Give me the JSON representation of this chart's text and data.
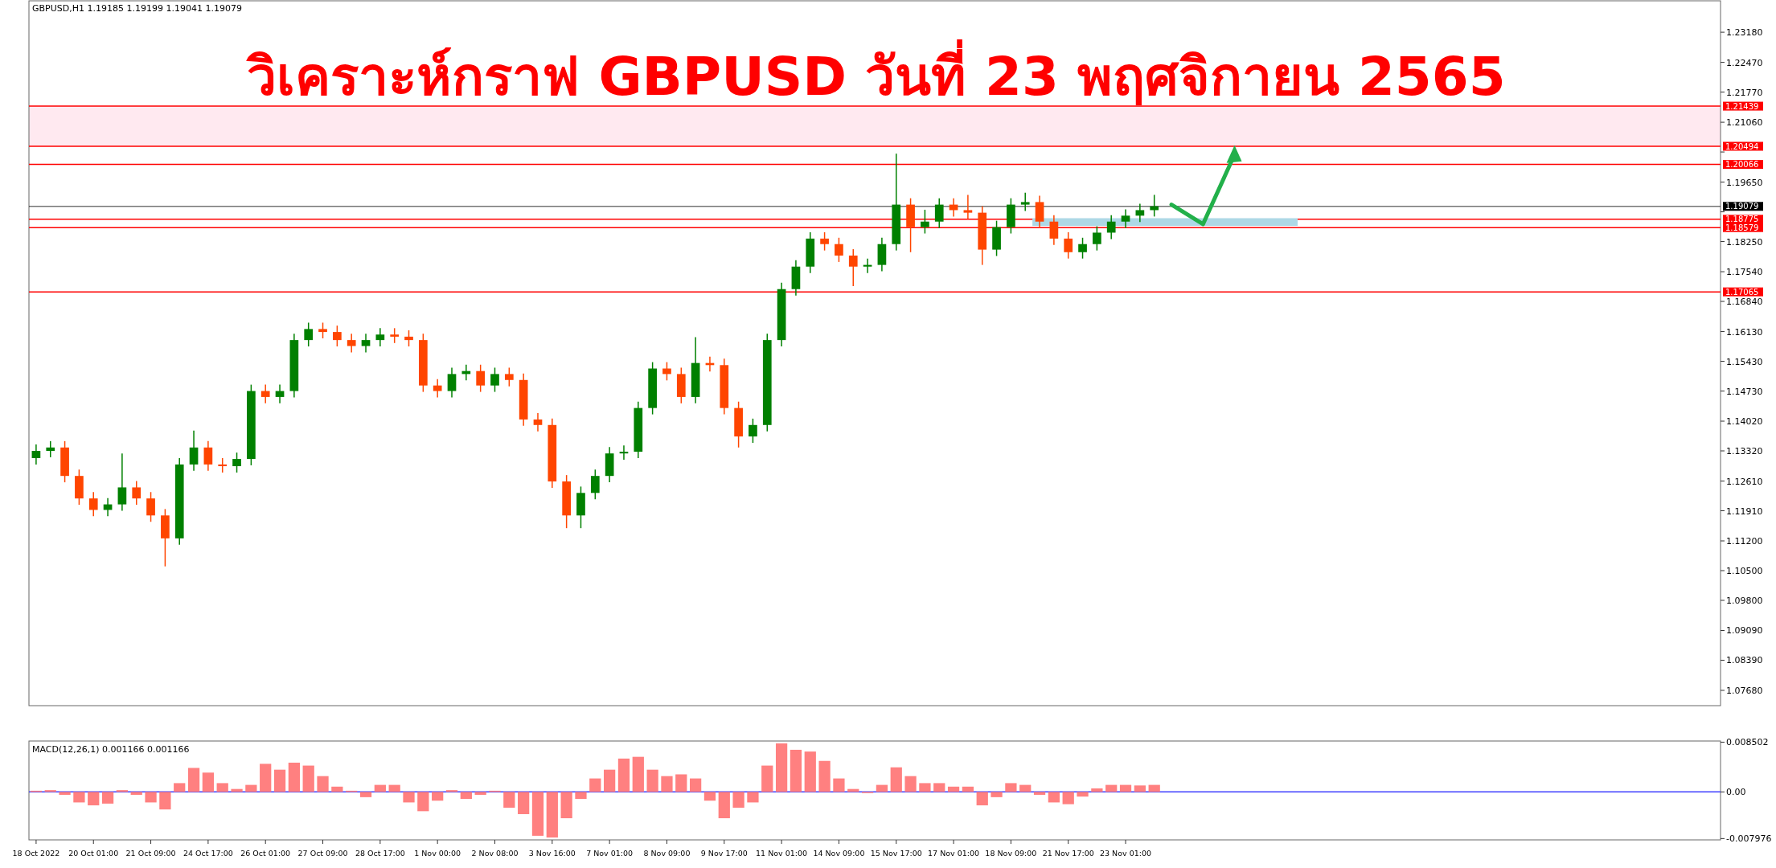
{
  "chart_data": [
    {
      "type": "candlestick",
      "title": "วิเคราะห์กราฟ GBPUSD วันที่ 23 พฤศจิกายน 2565",
      "annotations": [
        "GBPUSD,H1  1.19185 1.19199 1.19041 1.19079"
      ],
      "categories": [
        null,
        null,
        null,
        null,
        null,
        null,
        null,
        null,
        null,
        null,
        null,
        null,
        null,
        null,
        null,
        null,
        null,
        null,
        null,
        null,
        null,
        null,
        null,
        null,
        null,
        null,
        null,
        null,
        null,
        null,
        null,
        null,
        null,
        null,
        null,
        null,
        null,
        null,
        null,
        null,
        null,
        null,
        null,
        null,
        null,
        null,
        null,
        null,
        null,
        null,
        null,
        null,
        null,
        null,
        null,
        null,
        null,
        null,
        null,
        null,
        null,
        null,
        null,
        null,
        null,
        null,
        null,
        null,
        null,
        null,
        null,
        null,
        null,
        null,
        null,
        null,
        null,
        null,
        null,
        null,
        null,
        null,
        null,
        null,
        null,
        null,
        null,
        null,
        null,
        null,
        null,
        null,
        null,
        null,
        null,
        null,
        null,
        null,
        null,
        null,
        null,
        null,
        null,
        null,
        null,
        null,
        null,
        null,
        null,
        null,
        null,
        null,
        null,
        null,
        null,
        null,
        null,
        null
      ],
      "ohlc": [
        [
          1.1315,
          1.1347,
          1.13,
          1.1332
        ],
        [
          1.1332,
          1.1355,
          1.1317,
          1.134
        ],
        [
          1.134,
          1.1355,
          1.1258,
          1.1273
        ],
        [
          1.1273,
          1.1288,
          1.1205,
          1.122
        ],
        [
          1.122,
          1.1235,
          1.1178,
          1.1193
        ],
        [
          1.1193,
          1.1221,
          1.1178,
          1.1206
        ],
        [
          1.1206,
          1.1326,
          1.1191,
          1.1246
        ],
        [
          1.1246,
          1.1261,
          1.1205,
          1.122
        ],
        [
          1.122,
          1.1235,
          1.1165,
          1.118
        ],
        [
          1.118,
          1.1195,
          1.106,
          1.1126
        ],
        [
          1.1126,
          1.1315,
          1.1111,
          1.13
        ],
        [
          1.13,
          1.138,
          1.1285,
          1.134
        ],
        [
          1.134,
          1.1355,
          1.1285,
          1.13
        ],
        [
          1.13,
          1.1315,
          1.1281,
          1.1296
        ],
        [
          1.1296,
          1.1328,
          1.1281,
          1.1313
        ],
        [
          1.1313,
          1.1488,
          1.1298,
          1.1473
        ],
        [
          1.1473,
          1.1488,
          1.1444,
          1.1459
        ],
        [
          1.1459,
          1.1488,
          1.1444,
          1.1473
        ],
        [
          1.1473,
          1.1608,
          1.1458,
          1.1593
        ],
        [
          1.1593,
          1.1634,
          1.1578,
          1.1619
        ],
        [
          1.1619,
          1.1634,
          1.1597,
          1.1612
        ],
        [
          1.1612,
          1.1627,
          1.1578,
          1.1593
        ],
        [
          1.1593,
          1.1608,
          1.1564,
          1.1579
        ],
        [
          1.1579,
          1.1608,
          1.1564,
          1.1593
        ],
        [
          1.1593,
          1.1621,
          1.1578,
          1.1606
        ],
        [
          1.1606,
          1.1621,
          1.1586,
          1.1601
        ],
        [
          1.1601,
          1.1616,
          1.1578,
          1.1593
        ],
        [
          1.1593,
          1.1608,
          1.1471,
          1.1486
        ],
        [
          1.1486,
          1.1501,
          1.1458,
          1.1473
        ],
        [
          1.1473,
          1.1528,
          1.1458,
          1.1513
        ],
        [
          1.1513,
          1.1535,
          1.1498,
          1.152
        ],
        [
          1.152,
          1.1535,
          1.1471,
          1.1486
        ],
        [
          1.1486,
          1.1528,
          1.1471,
          1.1513
        ],
        [
          1.1513,
          1.1528,
          1.1484,
          1.1499
        ],
        [
          1.1499,
          1.1514,
          1.1391,
          1.1406
        ],
        [
          1.1406,
          1.1421,
          1.1378,
          1.1393
        ],
        [
          1.1393,
          1.1408,
          1.1245,
          1.126
        ],
        [
          1.126,
          1.1275,
          1.115,
          1.118
        ],
        [
          1.118,
          1.1248,
          1.115,
          1.1233
        ],
        [
          1.1233,
          1.1288,
          1.1218,
          1.1273
        ],
        [
          1.1273,
          1.1341,
          1.1258,
          1.1326
        ],
        [
          1.1326,
          1.1345,
          1.1311,
          1.133
        ],
        [
          1.133,
          1.1448,
          1.1315,
          1.1433
        ],
        [
          1.1433,
          1.1541,
          1.1418,
          1.1526
        ],
        [
          1.1526,
          1.1541,
          1.1498,
          1.1513
        ],
        [
          1.1513,
          1.1528,
          1.1444,
          1.1459
        ],
        [
          1.1459,
          1.16,
          1.1444,
          1.1539
        ],
        [
          1.1539,
          1.1554,
          1.1519,
          1.1534
        ],
        [
          1.1534,
          1.1549,
          1.1418,
          1.1433
        ],
        [
          1.1433,
          1.1448,
          1.134,
          1.1366
        ],
        [
          1.1366,
          1.1408,
          1.1351,
          1.1393
        ],
        [
          1.1393,
          1.1608,
          1.1378,
          1.1593
        ],
        [
          1.1593,
          1.1728,
          1.1578,
          1.1713
        ],
        [
          1.1713,
          1.1781,
          1.1698,
          1.1766
        ],
        [
          1.1766,
          1.1847,
          1.1751,
          1.1832
        ],
        [
          1.1832,
          1.1847,
          1.1804,
          1.1819
        ],
        [
          1.1819,
          1.1834,
          1.1777,
          1.1792
        ],
        [
          1.1792,
          1.1807,
          1.172,
          1.1766
        ],
        [
          1.1766,
          1.1785,
          1.1751,
          1.177
        ],
        [
          1.177,
          1.1834,
          1.1755,
          1.1819
        ],
        [
          1.1819,
          1.2032,
          1.1804,
          1.1912
        ],
        [
          1.1912,
          1.1927,
          1.18,
          1.1859
        ],
        [
          1.1859,
          1.19,
          1.1844,
          1.1872
        ],
        [
          1.1872,
          1.1927,
          1.1857,
          1.1912
        ],
        [
          1.1912,
          1.1927,
          1.1884,
          1.1899
        ],
        [
          1.1899,
          1.1935,
          1.1878,
          1.1893
        ],
        [
          1.1893,
          1.1908,
          1.177,
          1.1806
        ],
        [
          1.1806,
          1.1874,
          1.1791,
          1.1859
        ],
        [
          1.1859,
          1.1927,
          1.1844,
          1.1912
        ],
        [
          1.1912,
          1.194,
          1.1897,
          1.1918
        ],
        [
          1.1918,
          1.1933,
          1.1857,
          1.1872
        ],
        [
          1.1872,
          1.1887,
          1.1817,
          1.1832
        ],
        [
          1.1832,
          1.1847,
          1.1785,
          1.18
        ],
        [
          1.18,
          1.1834,
          1.1785,
          1.1819
        ],
        [
          1.1819,
          1.1861,
          1.1804,
          1.1846
        ],
        [
          1.1846,
          1.1887,
          1.1831,
          1.1872
        ],
        [
          1.1872,
          1.1901,
          1.1857,
          1.1886
        ],
        [
          1.1886,
          1.1914,
          1.1871,
          1.1899
        ],
        [
          1.1899,
          1.1935,
          1.1884,
          1.1908
        ],
        null,
        null,
        null,
        null,
        null,
        null,
        null,
        null,
        null,
        null,
        null,
        null,
        null,
        null,
        null,
        null,
        null,
        null,
        null,
        null,
        null,
        null,
        null,
        null,
        null,
        null,
        null,
        null,
        null,
        null,
        null,
        null,
        null,
        null,
        null,
        null,
        null,
        null,
        null
      ],
      "colors": [
        "#008000",
        "#008000",
        "#ff4500",
        "#ff4500",
        "#ff4500",
        "#008000",
        "#008000",
        "#ff4500",
        "#ff4500",
        "#ff4500",
        "#008000",
        "#008000",
        "#ff4500",
        "#ff4500",
        "#008000",
        "#008000",
        "#ff4500",
        "#008000",
        "#008000",
        "#008000",
        "#ff4500",
        "#ff4500",
        "#ff4500",
        "#008000",
        "#008000",
        "#ff4500",
        "#ff4500",
        "#ff4500",
        "#ff4500",
        "#008000",
        "#008000",
        "#ff4500",
        "#008000",
        "#ff4500",
        "#ff4500",
        "#ff4500",
        "#ff4500",
        "#ff4500",
        "#008000",
        "#008000",
        "#008000",
        "#008000",
        "#008000",
        "#008000",
        "#ff4500",
        "#ff4500",
        "#008000",
        "#ff4500",
        "#ff4500",
        "#ff4500",
        "#008000",
        "#008000",
        "#008000",
        "#008000",
        "#008000",
        "#ff4500",
        "#ff4500",
        "#ff4500",
        "#008000",
        "#008000",
        "#008000",
        "#ff4500",
        "#008000",
        "#008000",
        "#ff4500",
        "#ff4500",
        "#ff4500",
        "#008000",
        "#008000",
        "#008000",
        "#ff4500",
        "#ff4500",
        "#ff4500",
        "#008000",
        "#008000",
        "#008000",
        "#008000",
        "#008000",
        "#008000",
        null,
        null,
        null,
        null,
        null,
        null,
        null,
        null,
        null,
        null,
        null,
        null,
        null,
        null,
        null,
        null,
        null,
        null,
        null,
        null,
        null,
        null,
        null,
        null,
        null,
        null,
        null,
        null,
        null,
        null,
        null,
        null,
        null,
        null,
        null,
        null,
        null,
        null,
        null
      ],
      "ylim": [
        1.0732,
        1.2392
      ],
      "yticks": [
        {
          "value": 1.2318,
          "label": "1.23180"
        },
        {
          "value": 1.2247,
          "label": "1.22470"
        },
        {
          "value": 1.2177,
          "label": "1.21770"
        },
        {
          "value": 1.2106,
          "label": "1.21060"
        },
        {
          "value": 1.2036,
          "label": null
        },
        {
          "value": 1.1965,
          "label": "1.19650"
        },
        {
          "value": 1.1895,
          "label": null
        },
        {
          "value": 1.1825,
          "label": "1.18250"
        },
        {
          "value": 1.1754,
          "label": "1.17540"
        },
        {
          "value": 1.1684,
          "label": "1.16840"
        },
        {
          "value": 1.1613,
          "label": "1.16130"
        },
        {
          "value": 1.1543,
          "label": "1.15430"
        },
        {
          "value": 1.1473,
          "label": "1.14730"
        },
        {
          "value": 1.1402,
          "label": "1.14020"
        },
        {
          "value": 1.1332,
          "label": "1.13320"
        },
        {
          "value": 1.1261,
          "label": "1.12610"
        },
        {
          "value": 1.1191,
          "label": "1.11910"
        },
        {
          "value": 1.112,
          "label": "1.11200"
        },
        {
          "value": 1.105,
          "label": "1.10500"
        },
        {
          "value": 1.098,
          "label": "1.09800"
        },
        {
          "value": 1.0909,
          "label": "1.09090"
        },
        {
          "value": 1.0839,
          "label": "1.08390"
        },
        {
          "value": 1.0768,
          "label": "1.07680"
        }
      ],
      "ref_lines": [
        {
          "axis": "y",
          "value": 1.21439,
          "label": "1.21439",
          "color": "#ff0000"
        },
        {
          "axis": "y",
          "value": 1.20494,
          "label": "1.20494",
          "color": "#ff0000"
        },
        {
          "axis": "y",
          "value": 1.20066,
          "label": "1.20066",
          "color": "#ff0000"
        },
        {
          "axis": "y",
          "value": 1.19079,
          "label": "1.19079",
          "color": "#000000"
        },
        {
          "axis": "y",
          "value": 1.18775,
          "label": "1.18775",
          "color": "#ff0000"
        },
        {
          "axis": "y",
          "value": 1.18579,
          "label": "1.18579",
          "color": "#ff0000"
        },
        {
          "axis": "y",
          "value": 1.17065,
          "label": "1.17065",
          "color": "#ff0000"
        }
      ],
      "bands": [
        {
          "axis": "y",
          "from": 1.20494,
          "to": 1.21439,
          "color": "#ffe9f0"
        }
      ],
      "tick_labels": "y"
    },
    {
      "type": "bar",
      "title": "MACD(12,26,1) 0.001166 0.001166",
      "categories": [
        "18 Oct 2022",
        null,
        null,
        null,
        "20 Oct 01:00",
        null,
        null,
        null,
        "21 Oct 09:00",
        null,
        null,
        null,
        "24 Oct 17:00",
        null,
        null,
        null,
        "26 Oct 01:00",
        null,
        null,
        null,
        "27 Oct 09:00",
        null,
        null,
        null,
        "28 Oct 17:00",
        null,
        null,
        null,
        "1 Nov 00:00",
        null,
        null,
        null,
        "2 Nov 08:00",
        null,
        null,
        null,
        "3 Nov 16:00",
        null,
        null,
        null,
        "7 Nov 01:00",
        null,
        null,
        null,
        "8 Nov 09:00",
        null,
        null,
        null,
        "9 Nov 17:00",
        null,
        null,
        null,
        "11 Nov 01:00",
        null,
        null,
        null,
        "14 Nov 09:00",
        null,
        null,
        null,
        "15 Nov 17:00",
        null,
        null,
        null,
        "17 Nov 01:00",
        null,
        null,
        null,
        "18 Nov 09:00",
        null,
        null,
        null,
        "21 Nov 17:00",
        null,
        null,
        null,
        "23 Nov 01:00",
        null,
        null,
        null,
        null,
        null,
        null,
        null,
        null,
        null,
        null,
        null,
        null,
        null,
        null,
        null,
        null,
        null,
        null,
        null,
        null,
        null,
        null,
        null,
        null,
        null,
        null,
        null,
        null,
        null,
        null,
        null,
        null,
        null,
        null,
        null,
        null,
        null,
        null,
        null,
        null,
        null
      ],
      "values": [
        0.0002,
        0.0003,
        -0.0005,
        -0.0018,
        -0.0023,
        -0.002,
        0.0003,
        -0.0005,
        -0.0018,
        -0.003,
        0.0015,
        0.0041,
        0.0033,
        0.0015,
        0.0005,
        0.0012,
        0.0048,
        0.0038,
        0.005,
        0.0045,
        0.0027,
        0.0009,
        0.0002,
        -0.0009,
        0.0012,
        0.0012,
        -0.0018,
        -0.0033,
        -0.0015,
        0.0003,
        -0.0012,
        -0.0005,
        0.0002,
        -0.0027,
        -0.0038,
        -0.0075,
        -0.0078,
        -0.0045,
        -0.0012,
        0.0023,
        0.0038,
        0.0057,
        0.006,
        0.0038,
        0.0027,
        0.003,
        0.0023,
        -0.0015,
        -0.0045,
        -0.0027,
        -0.0018,
        0.0045,
        0.0083,
        0.0072,
        0.0069,
        0.0053,
        0.0023,
        0.0005,
        -0.0002,
        0.0012,
        0.0042,
        0.0027,
        0.0015,
        0.0015,
        0.0009,
        0.0009,
        -0.0023,
        -0.0009,
        0.0015,
        0.0012,
        -0.0005,
        -0.0018,
        -0.0021,
        -0.0008,
        0.0006,
        0.0012,
        0.0012,
        0.0011,
        0.0012,
        null,
        null,
        null,
        null,
        null,
        null,
        null,
        null,
        null,
        null,
        null,
        null,
        null,
        null,
        null,
        null,
        null,
        null,
        null,
        null,
        null,
        null,
        null,
        null,
        null,
        null,
        null,
        null,
        null,
        null,
        null,
        null,
        null,
        null,
        null,
        null,
        null,
        null,
        null
      ],
      "color": "#ff8080",
      "ylim": [
        -0.0082,
        0.0087
      ],
      "yticks": [
        0.008502,
        {
          "value": 0,
          "label": "0.00"
        },
        -0.007976
      ],
      "ref_lines": [
        {
          "axis": "y",
          "value": 0,
          "color": "#4040ff"
        }
      ]
    }
  ]
}
